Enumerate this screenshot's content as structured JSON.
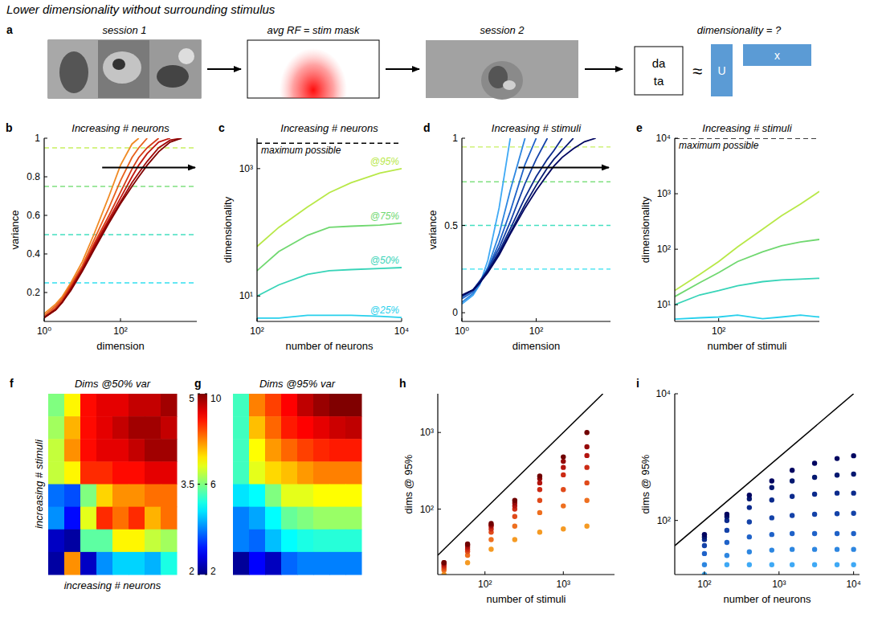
{
  "title": "Lower dimensionality without surrounding stimulus",
  "panel_a": {
    "panel": "a",
    "steps": [
      "session 1",
      "avg RF = stim mask",
      "session 2",
      "dimensionality = ?"
    ],
    "matrix": [
      "da",
      "ta"
    ],
    "approx": "≈",
    "factors": [
      "U",
      "x"
    ]
  },
  "chart_data": [
    {
      "panel": "b",
      "type": "line",
      "title": "Increasing # neurons",
      "x_label": "dimension",
      "y_label": "variance",
      "log": "x",
      "xlim": [
        1,
        10000
      ],
      "xticks": [
        {
          "value": 1,
          "label": "10⁰"
        },
        {
          "value": 100,
          "label": "10²"
        }
      ],
      "ylim": [
        0.05,
        1
      ],
      "yticks": [
        0.2,
        0.4,
        0.6,
        0.8,
        1
      ],
      "reference_lines": [
        {
          "value": 0.25,
          "color": "#33e0f0",
          "line_style": "dashed"
        },
        {
          "value": 0.5,
          "color": "#44e0c0",
          "line_style": "dashed"
        },
        {
          "value": 0.75,
          "color": "#80e080",
          "line_style": "dashed"
        },
        {
          "value": 0.95,
          "color": "#c8f060",
          "line_style": "dashed"
        }
      ],
      "x": [
        1,
        2,
        3,
        5,
        10,
        20,
        50,
        100,
        200,
        300,
        500,
        1000,
        2000,
        4000
      ],
      "series": [
        {
          "color": "#f08a24",
          "values": [
            0.09,
            0.14,
            0.18,
            0.25,
            0.36,
            0.5,
            0.7,
            0.86,
            0.97,
            1,
            null,
            null,
            null,
            null
          ]
        },
        {
          "color": "#e8601c",
          "values": [
            0.08,
            0.13,
            0.17,
            0.24,
            0.34,
            0.47,
            0.64,
            0.78,
            0.9,
            0.95,
            1,
            null,
            null,
            null
          ]
        },
        {
          "color": "#d63a16",
          "values": [
            0.07,
            0.12,
            0.16,
            0.23,
            0.33,
            0.45,
            0.6,
            0.72,
            0.84,
            0.9,
            0.95,
            1,
            null,
            null
          ]
        },
        {
          "color": "#c01810",
          "values": [
            0.07,
            0.11,
            0.15,
            0.22,
            0.32,
            0.44,
            0.58,
            0.69,
            0.8,
            0.86,
            0.92,
            0.98,
            1,
            null
          ]
        },
        {
          "color": "#a00808",
          "values": [
            0.07,
            0.11,
            0.15,
            0.22,
            0.32,
            0.43,
            0.57,
            0.67,
            0.77,
            0.82,
            0.88,
            0.95,
            0.99,
            1
          ]
        },
        {
          "color": "#800000",
          "values": [
            0.07,
            0.11,
            0.15,
            0.21,
            0.31,
            0.42,
            0.56,
            0.66,
            0.75,
            0.8,
            0.86,
            0.93,
            0.98,
            1
          ]
        }
      ]
    },
    {
      "panel": "c",
      "type": "line",
      "title": "Increasing # neurons",
      "x_label": "number of neurons",
      "y_label": "dimensionality",
      "log": true,
      "xlim": [
        100,
        10000
      ],
      "xticks": [
        {
          "value": 100,
          "label": "10²"
        },
        {
          "value": 10000,
          "label": "10⁴"
        }
      ],
      "ylim": [
        4,
        3000
      ],
      "yticks": [
        {
          "value": 10,
          "label": "10¹"
        },
        {
          "value": 1000,
          "label": "10³"
        }
      ],
      "reference_lines": [
        {
          "value": 2500,
          "color": "#000000",
          "line_style": "dashed",
          "label": "maximum possible"
        }
      ],
      "x": [
        100,
        200,
        500,
        1000,
        2000,
        5000,
        10000
      ],
      "series": [
        {
          "name": "@95%",
          "color": "#b8e848",
          "values": [
            60,
            120,
            250,
            420,
            600,
            850,
            1000
          ]
        },
        {
          "name": "@75%",
          "color": "#70d870",
          "values": [
            25,
            50,
            90,
            120,
            125,
            130,
            140
          ]
        },
        {
          "name": "@50%",
          "color": "#38d4b8",
          "values": [
            10,
            15,
            22,
            25,
            26,
            27,
            28
          ]
        },
        {
          "name": "@25%",
          "color": "#28d0ec",
          "values": [
            4.5,
            4.5,
            5,
            5,
            5,
            4.8,
            4.6
          ]
        }
      ]
    },
    {
      "panel": "d",
      "type": "line",
      "title": "Increasing # stimuli",
      "x_label": "dimension",
      "y_label": "variance",
      "log": "x",
      "xlim": [
        1,
        10000
      ],
      "xticks": [
        {
          "value": 1,
          "label": "10⁰"
        },
        {
          "value": 100,
          "label": "10²"
        }
      ],
      "ylim": [
        -0.05,
        1
      ],
      "yticks": [
        0,
        0.5,
        1
      ],
      "reference_lines": [
        {
          "value": 0.25,
          "color": "#33e0f0",
          "line_style": "dashed"
        },
        {
          "value": 0.5,
          "color": "#44e0c0",
          "line_style": "dashed"
        },
        {
          "value": 0.75,
          "color": "#80e080",
          "line_style": "dashed"
        },
        {
          "value": 0.95,
          "color": "#c8f060",
          "line_style": "dashed"
        }
      ],
      "x": [
        1,
        2,
        3,
        5,
        10,
        20,
        50,
        100,
        200,
        300,
        500,
        1000,
        2000,
        4000
      ],
      "series": [
        {
          "color": "#3fa9f5",
          "values": [
            0.05,
            0.1,
            0.16,
            0.3,
            0.6,
            1,
            null,
            null,
            null,
            null,
            null,
            null,
            null,
            null
          ]
        },
        {
          "color": "#2d86e0",
          "values": [
            0.06,
            0.11,
            0.16,
            0.26,
            0.45,
            0.7,
            1,
            null,
            null,
            null,
            null,
            null,
            null,
            null
          ]
        },
        {
          "color": "#1f62c8",
          "values": [
            0.08,
            0.12,
            0.17,
            0.25,
            0.4,
            0.58,
            0.85,
            1,
            null,
            null,
            null,
            null,
            null,
            null
          ]
        },
        {
          "color": "#1442a8",
          "values": [
            0.09,
            0.13,
            0.18,
            0.25,
            0.37,
            0.52,
            0.74,
            0.88,
            1,
            null,
            null,
            null,
            null,
            null
          ]
        },
        {
          "color": "#0b2a8c",
          "values": [
            0.1,
            0.13,
            0.18,
            0.24,
            0.35,
            0.48,
            0.66,
            0.78,
            0.88,
            0.93,
            1,
            null,
            null,
            null
          ]
        },
        {
          "color": "#041870",
          "values": [
            0.1,
            0.13,
            0.17,
            0.24,
            0.34,
            0.46,
            0.62,
            0.73,
            0.83,
            0.88,
            0.93,
            1,
            null,
            null
          ]
        },
        {
          "color": "#000560",
          "values": [
            0.1,
            0.13,
            0.17,
            0.23,
            0.33,
            0.45,
            0.6,
            0.7,
            0.79,
            0.84,
            0.89,
            0.94,
            0.98,
            1
          ]
        }
      ]
    },
    {
      "panel": "e",
      "type": "line",
      "title": "Increasing # stimuli",
      "x_label": "number of stimuli",
      "y_label": "dimensionality",
      "log": true,
      "xlim": [
        20,
        4000
      ],
      "xticks": [
        {
          "value": 100,
          "label": "10²"
        }
      ],
      "ylim": [
        5,
        10000
      ],
      "yticks": [
        {
          "value": 10,
          "label": "10¹"
        },
        {
          "value": 100,
          "label": "10²"
        },
        {
          "value": 1000,
          "label": "10³"
        },
        {
          "value": 10000,
          "label": "10⁴"
        }
      ],
      "reference_lines": [
        {
          "value": 10000,
          "color": "#000000",
          "line_style": "dashed",
          "label": "maximum possible"
        }
      ],
      "x": [
        20,
        50,
        100,
        200,
        500,
        1000,
        2000,
        4000
      ],
      "series": [
        {
          "color": "#b8e848",
          "values": [
            18,
            35,
            60,
            110,
            230,
            400,
            650,
            1100
          ]
        },
        {
          "color": "#70d870",
          "values": [
            14,
            25,
            38,
            60,
            90,
            115,
            135,
            150
          ]
        },
        {
          "color": "#38d4b8",
          "values": [
            10,
            15,
            18,
            22,
            26,
            28,
            29,
            30
          ]
        },
        {
          "color": "#28d0ec",
          "values": [
            5.5,
            5.8,
            6,
            6.5,
            5.6,
            6,
            6.5,
            6
          ]
        }
      ]
    },
    {
      "panel": "f",
      "type": "heatmap",
      "title": "Dims @50% var",
      "x_label": "increasing # neurons",
      "y_label": "increasing # stimuli",
      "colorbar": {
        "range": [
          2,
          5
        ],
        "ticks": [
          2,
          3.5,
          5
        ]
      },
      "cells": [
        [
          3.5,
          3.9,
          4.6,
          4.7,
          4.7,
          4.8,
          4.8,
          4.9
        ],
        [
          3.6,
          4.1,
          4.6,
          4.7,
          4.8,
          4.9,
          4.9,
          4.8
        ],
        [
          3.7,
          4.2,
          4.6,
          4.7,
          4.7,
          4.8,
          4.9,
          4.9
        ],
        [
          3.7,
          3.9,
          4.5,
          4.5,
          4.6,
          4.6,
          4.7,
          4.7
        ],
        [
          2.7,
          2.6,
          3.5,
          4,
          4.2,
          4.2,
          4.3,
          4.3
        ],
        [
          2.8,
          2.4,
          3.8,
          4.5,
          4.3,
          4.5,
          4.1,
          4.3
        ],
        [
          2.2,
          2.1,
          3.4,
          3.4,
          3.9,
          3.9,
          3.7,
          3.6
        ],
        [
          2.1,
          4.2,
          2.2,
          2.8,
          3,
          3,
          2.9,
          3.2
        ]
      ]
    },
    {
      "panel": "g",
      "type": "heatmap",
      "title": "Dims @95% var",
      "colorbar": {
        "range": [
          2,
          10
        ],
        "ticks": [
          2,
          6,
          10
        ]
      },
      "cells": [
        [
          5.5,
          8,
          8.5,
          9,
          9.5,
          9.8,
          10,
          10
        ],
        [
          5.5,
          7.5,
          8.2,
          8.8,
          9,
          9.2,
          9.4,
          9.5
        ],
        [
          5.5,
          7,
          7.8,
          8.2,
          8.5,
          8.7,
          8.8,
          8.8
        ],
        [
          5.5,
          6.8,
          7.3,
          7.5,
          7.8,
          8,
          8,
          8
        ],
        [
          4.8,
          5,
          6,
          6.8,
          6.8,
          7,
          7,
          7
        ],
        [
          4,
          4.3,
          5,
          5.8,
          6,
          6.2,
          6.2,
          6.2
        ],
        [
          4,
          3.8,
          4.5,
          5,
          5.2,
          5.3,
          5.3,
          5.3
        ],
        [
          2.2,
          3,
          2.5,
          3.8,
          4,
          4,
          4,
          4
        ]
      ]
    },
    {
      "panel": "h",
      "type": "scatter",
      "x_label": "number of stimuli",
      "y_label": "dims @ 95%",
      "log": true,
      "marker": "circle",
      "xlim": [
        25,
        4500
      ],
      "xticks": [
        {
          "value": 100,
          "label": "10²"
        },
        {
          "value": 1000,
          "label": "10³"
        }
      ],
      "ylim": [
        14,
        3200
      ],
      "yticks": [
        {
          "value": 100,
          "label": "10²"
        },
        {
          "value": 1000,
          "label": "10³"
        }
      ],
      "x": [
        30,
        60,
        120,
        240,
        500,
        1000,
        2000
      ],
      "series": [
        {
          "color": "#f59a23",
          "values": [
            14,
            20,
            30,
            40,
            50,
            55,
            60
          ]
        },
        {
          "color": "#ee6f1f",
          "values": [
            16,
            25,
            40,
            60,
            90,
            110,
            130
          ]
        },
        {
          "color": "#e04a1a",
          "values": [
            17,
            28,
            50,
            80,
            130,
            180,
            220
          ]
        },
        {
          "color": "#cc2a14",
          "values": [
            18,
            30,
            55,
            100,
            180,
            280,
            350
          ]
        },
        {
          "color": "#b3140e",
          "values": [
            19,
            32,
            60,
            110,
            220,
            350,
            500
          ]
        },
        {
          "color": "#950808",
          "values": [
            20,
            34,
            62,
            120,
            250,
            420,
            650
          ]
        },
        {
          "color": "#700000",
          "values": [
            20,
            35,
            65,
            130,
            270,
            480,
            1000
          ]
        }
      ]
    },
    {
      "panel": "i",
      "type": "scatter",
      "x_label": "number of neurons",
      "y_label": "dims @ 95%",
      "log": true,
      "marker": "circle",
      "xlim": [
        40,
        12000
      ],
      "xticks": [
        {
          "value": 100,
          "label": "10²"
        },
        {
          "value": 1000,
          "label": "10³"
        },
        {
          "value": 10000,
          "label": "10⁴"
        }
      ],
      "ylim": [
        14,
        10000
      ],
      "yticks": [
        {
          "value": 100,
          "label": "10²"
        },
        {
          "value": 10000,
          "label": "10⁴"
        }
      ],
      "x": [
        100,
        200,
        400,
        800,
        1500,
        3000,
        6000,
        10000
      ],
      "series": [
        {
          "color": "#3fa9f5",
          "values": [
            14,
            20,
            20,
            20,
            20,
            20,
            20,
            20
          ]
        },
        {
          "color": "#2d86e0",
          "values": [
            20,
            28,
            32,
            34,
            35,
            35,
            35,
            35
          ]
        },
        {
          "color": "#1f62c8",
          "values": [
            30,
            45,
            55,
            60,
            62,
            62,
            62,
            62
          ]
        },
        {
          "color": "#1442a8",
          "values": [
            40,
            70,
            95,
            110,
            120,
            125,
            128,
            130
          ]
        },
        {
          "color": "#0b2a8c",
          "values": [
            50,
            100,
            160,
            210,
            240,
            260,
            270,
            270
          ]
        },
        {
          "color": "#041870",
          "values": [
            55,
            115,
            220,
            330,
            420,
            480,
            520,
            540
          ]
        },
        {
          "color": "#000560",
          "values": [
            60,
            125,
            250,
            420,
            620,
            800,
            950,
            1050
          ]
        }
      ]
    }
  ]
}
